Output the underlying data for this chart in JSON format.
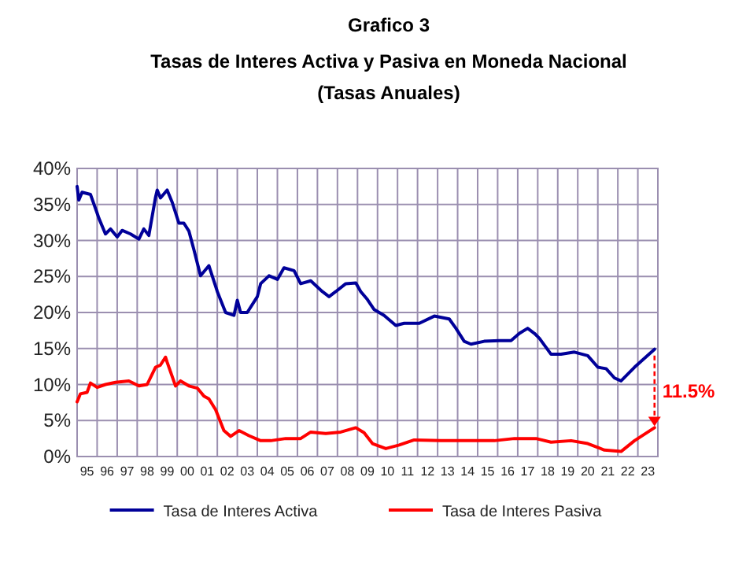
{
  "chart_data": {
    "type": "line",
    "title": "Grafico 3",
    "subtitle": "Tasas de Interes Activa y Pasiva en Moneda Nacional\n(Tasas Anuales)",
    "xlim": [
      "1995-01",
      "2024-01"
    ],
    "xticks": [
      {
        "value": "1995-01-01",
        "label": null
      },
      {
        "value": "1995-07-01",
        "label": "95"
      },
      {
        "value": "1996-01-01",
        "label": null
      },
      {
        "value": "1996-07-01",
        "label": "96"
      },
      {
        "value": "1997-01-01",
        "label": null
      },
      {
        "value": "1997-07-01",
        "label": "97"
      },
      {
        "value": "1998-01-01",
        "label": null
      },
      {
        "value": "1998-07-01",
        "label": "98"
      },
      {
        "value": "1999-01-01",
        "label": null
      },
      {
        "value": "1999-07-01",
        "label": "99"
      },
      {
        "value": "2000-01-01",
        "label": null
      },
      {
        "value": "2000-07-01",
        "label": "00"
      },
      {
        "value": "2001-01-01",
        "label": null
      },
      {
        "value": "2001-07-01",
        "label": "01"
      },
      {
        "value": "2002-01-01",
        "label": null
      },
      {
        "value": "2002-07-01",
        "label": "02"
      },
      {
        "value": "2003-01-01",
        "label": null
      },
      {
        "value": "2003-07-01",
        "label": "03"
      },
      {
        "value": "2004-01-01",
        "label": null
      },
      {
        "value": "2004-07-01",
        "label": "04"
      },
      {
        "value": "2005-01-01",
        "label": null
      },
      {
        "value": "2005-07-01",
        "label": "05"
      },
      {
        "value": "2006-01-01",
        "label": null
      },
      {
        "value": "2006-07-01",
        "label": "06"
      },
      {
        "value": "2007-01-01",
        "label": null
      },
      {
        "value": "2007-07-01",
        "label": "07"
      },
      {
        "value": "2008-01-01",
        "label": null
      },
      {
        "value": "2008-07-01",
        "label": "08"
      },
      {
        "value": "2009-01-01",
        "label": null
      },
      {
        "value": "2009-07-01",
        "label": "09"
      },
      {
        "value": "2010-01-01",
        "label": null
      },
      {
        "value": "2010-07-01",
        "label": "10"
      },
      {
        "value": "2011-01-01",
        "label": null
      },
      {
        "value": "2011-07-01",
        "label": "11"
      },
      {
        "value": "2012-01-01",
        "label": null
      },
      {
        "value": "2012-07-01",
        "label": "12"
      },
      {
        "value": "2013-01-01",
        "label": null
      },
      {
        "value": "2013-07-01",
        "label": "13"
      },
      {
        "value": "2014-01-01",
        "label": null
      },
      {
        "value": "2014-07-01",
        "label": "14"
      },
      {
        "value": "2015-01-01",
        "label": null
      },
      {
        "value": "2015-07-01",
        "label": "15"
      },
      {
        "value": "2016-01-01",
        "label": null
      },
      {
        "value": "2016-07-01",
        "label": "16"
      },
      {
        "value": "2017-01-01",
        "label": null
      },
      {
        "value": "2017-07-01",
        "label": "17"
      },
      {
        "value": "2018-01-01",
        "label": null
      },
      {
        "value": "2018-07-01",
        "label": "18"
      },
      {
        "value": "2019-01-01",
        "label": null
      },
      {
        "value": "2019-07-01",
        "label": "19"
      },
      {
        "value": "2020-01-01",
        "label": null
      },
      {
        "value": "2020-07-01",
        "label": "20"
      },
      {
        "value": "2021-01-01",
        "label": null
      },
      {
        "value": "2021-07-01",
        "label": "21"
      },
      {
        "value": "2022-01-01",
        "label": null
      },
      {
        "value": "2022-07-01",
        "label": "22"
      },
      {
        "value": "2023-01-01",
        "label": null
      },
      {
        "value": "2023-07-01",
        "label": "23"
      },
      {
        "value": "2024-01-01",
        "label": null
      }
    ],
    "ylim": [
      0,
      40
    ],
    "yticks": [
      {
        "value": 0,
        "label": "0%"
      },
      {
        "value": 5,
        "label": "5%"
      },
      {
        "value": 10,
        "label": "10%"
      },
      {
        "value": 15,
        "label": "15%"
      },
      {
        "value": 20,
        "label": "20%"
      },
      {
        "value": 25,
        "label": "25%"
      },
      {
        "value": 30,
        "label": "30%"
      },
      {
        "value": 35,
        "label": "35%"
      },
      {
        "value": 40,
        "label": "40%"
      }
    ],
    "grid": true,
    "legend": "bottom",
    "annotations": [
      "11.5%"
    ],
    "series": [
      {
        "name": "Tasa de Interes Activa",
        "color": "#000099",
        "x": [
          "1995-01",
          "1995-02",
          "1995-04",
          "1995-09",
          "1996-01",
          "1996-02",
          "1996-06",
          "1996-09",
          "1997-01",
          "1997-04",
          "1997-09",
          "1998-02",
          "1998-05",
          "1998-08",
          "1998-12",
          "1999-01",
          "1999-03",
          "1999-07",
          "1999-10",
          "2000-02",
          "2000-05",
          "2000-08",
          "2000-11",
          "2001-03",
          "2001-08",
          "2002-01",
          "2002-06",
          "2002-11",
          "2003-01",
          "2003-03",
          "2003-07",
          "2004-01",
          "2004-03",
          "2004-08",
          "2005-01",
          "2005-05",
          "2005-11",
          "2006-03",
          "2006-09",
          "2007-04",
          "2007-08",
          "2007-12",
          "2008-06",
          "2008-12",
          "2009-03",
          "2009-07",
          "2009-11",
          "2010-05",
          "2010-12",
          "2011-05",
          "2012-02",
          "2012-11",
          "2013-08",
          "2013-12",
          "2014-05",
          "2014-09",
          "2015-05",
          "2016-02",
          "2016-09",
          "2017-02",
          "2017-07",
          "2017-11",
          "2018-02",
          "2018-09",
          "2019-03",
          "2019-11",
          "2020-07",
          "2021-01",
          "2021-06",
          "2021-11",
          "2022-03",
          "2022-11",
          "2023-11"
        ],
        "values": [
          37.5,
          35.6,
          36.7,
          36.4,
          33.8,
          33.1,
          30.9,
          31.6,
          30.5,
          31.4,
          30.9,
          30.2,
          31.6,
          30.7,
          36.0,
          37.0,
          35.9,
          37.0,
          35.3,
          32.4,
          32.4,
          31.3,
          28.7,
          25.1,
          26.5,
          22.9,
          20.0,
          19.6,
          21.7,
          20.0,
          20.0,
          22.2,
          24.0,
          25.1,
          24.6,
          26.2,
          25.8,
          24.0,
          24.4,
          22.9,
          22.2,
          22.9,
          24.0,
          24.1,
          22.9,
          21.8,
          20.4,
          19.6,
          18.2,
          18.5,
          18.5,
          19.5,
          19.1,
          17.8,
          16.0,
          15.6,
          16.0,
          16.1,
          16.1,
          17.1,
          17.8,
          17.1,
          16.4,
          14.2,
          14.2,
          14.5,
          14.0,
          12.4,
          12.2,
          10.9,
          10.5,
          12.4,
          14.9
        ]
      },
      {
        "name": "Tasa de Interes Pasiva",
        "color": "#ff0000",
        "x": [
          "1995-01",
          "1995-03",
          "1995-07",
          "1995-09",
          "1996-01",
          "1996-06",
          "1996-12",
          "1997-08",
          "1998-02",
          "1998-07",
          "1998-12",
          "1999-03",
          "1999-06",
          "1999-07",
          "1999-12",
          "2000-03",
          "2000-08",
          "2001-01",
          "2001-05",
          "2001-08",
          "2001-12",
          "2002-05",
          "2002-09",
          "2003-02",
          "2003-08",
          "2004-03",
          "2004-09",
          "2005-06",
          "2006-03",
          "2006-09",
          "2007-06",
          "2008-03",
          "2008-12",
          "2009-05",
          "2009-10",
          "2010-06",
          "2011-02",
          "2011-11",
          "2013-03",
          "2014-07",
          "2015-11",
          "2016-11",
          "2017-12",
          "2018-09",
          "2019-09",
          "2020-07",
          "2021-05",
          "2022-03",
          "2022-11",
          "2023-11"
        ],
        "values": [
          7.6,
          8.7,
          8.9,
          10.2,
          9.6,
          10.0,
          10.3,
          10.5,
          9.8,
          10.0,
          12.4,
          12.7,
          13.8,
          13.1,
          9.8,
          10.5,
          9.8,
          9.5,
          8.4,
          8.0,
          6.5,
          3.6,
          2.8,
          3.6,
          2.9,
          2.2,
          2.2,
          2.5,
          2.5,
          3.4,
          3.2,
          3.4,
          4.0,
          3.3,
          1.8,
          1.1,
          1.6,
          2.3,
          2.2,
          2.2,
          2.2,
          2.5,
          2.5,
          2.0,
          2.2,
          1.8,
          0.9,
          0.7,
          2.2,
          4.0
        ]
      }
    ]
  }
}
